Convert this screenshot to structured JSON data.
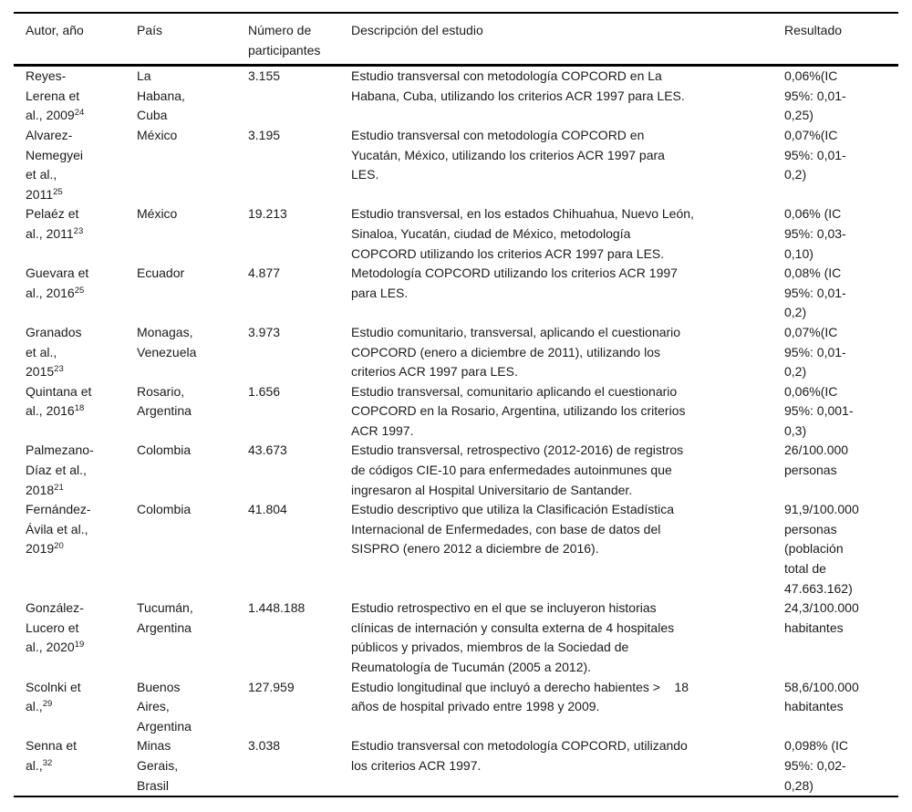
{
  "table": {
    "columns": [
      {
        "label": "Autor, año"
      },
      {
        "label": "País"
      },
      {
        "label": "Número de\nparticipantes"
      },
      {
        "label": "Descripción del estudio"
      },
      {
        "label": "Resultado"
      }
    ],
    "rows": [
      {
        "author": "Reyes-\nLerena et\nal., 2009",
        "ref": "24",
        "country": "La\nHabana,\nCuba",
        "participants": "3.155",
        "description": "Estudio transversal con metodología COPCORD en La\nHabana, Cuba, utilizando los criterios ACR 1997 para LES.",
        "result": "0,06%(IC\n95%: 0,01-\n0,25)"
      },
      {
        "author": "Alvarez-\nNemegyei\net al.,\n2011",
        "ref": "25",
        "country": "México",
        "participants": "3.195",
        "description": "Estudio transversal con metodología COPCORD en\nYucatán, México, utilizando los criterios ACR 1997 para\nLES.",
        "result": "0,07%(IC\n95%: 0,01-\n0,2)"
      },
      {
        "author": "Pelaéz et\nal., 2011",
        "ref": "23",
        "country": "México",
        "participants": "19.213",
        "description": "Estudio transversal, en los estados Chihuahua, Nuevo León,\nSinaloa, Yucatán, ciudad de México, metodología\nCOPCORD utilizando los criterios ACR 1997 para LES.",
        "result": "0,06% (IC\n95%: 0,03-\n0,10)"
      },
      {
        "author": "Guevara et\nal., 2016",
        "ref": "25",
        "country": "Ecuador",
        "participants": "4.877",
        "description": "Metodología COPCORD utilizando los criterios ACR 1997\npara LES.",
        "result": "0,08% (IC\n95%: 0,01-\n0,2)"
      },
      {
        "author": "Granados\net al.,\n2015",
        "ref": "23",
        "country": "Monagas,\nVenezuela",
        "participants": "3.973",
        "description": "Estudio comunitario, transversal, aplicando el cuestionario\nCOPCORD (enero a diciembre de 2011), utilizando los\ncriterios ACR 1997 para LES.",
        "result": "0,07%(IC\n95%: 0,01-\n0,2)"
      },
      {
        "author": "Quintana et\nal., 2016",
        "ref": "18",
        "country": "Rosario,\nArgentina",
        "participants": "1.656",
        "description": "Estudio transversal, comunitario aplicando el cuestionario\nCOPCORD en la Rosario, Argentina, utilizando los criterios\nACR 1997.",
        "result": "0,06%(IC\n95%: 0,001-\n0,3)"
      },
      {
        "author": "Palmezano-\nDíaz et al.,\n2018",
        "ref": "21",
        "country": "Colombia",
        "participants": "43.673",
        "description": "Estudio transversal, retrospectivo (2012-2016) de registros\nde códigos CIE-10 para enfermedades autoinmunes que\ningresaron al Hospital Universitario de Santander.",
        "result": "26/100.000\npersonas"
      },
      {
        "author": "Fernández-\nÁvila et al.,\n2019",
        "ref": "20",
        "country": "Colombia",
        "participants": "41.804",
        "description": "Estudio descriptivo que utiliza la Clasificación Estadística\nInternacional de Enfermedades, con base de datos del\nSISPRO (enero 2012 a diciembre de 2016).",
        "result": "91,9/100.000\npersonas\n(población\ntotal de\n47.663.162)"
      },
      {
        "author": "González-\nLucero et\nal., 2020",
        "ref": "19",
        "country": "Tucumán,\nArgentina",
        "participants": "1.448.188",
        "description": "Estudio retrospectivo en el que se incluyeron historias\nclínicas de internación y consulta externa de 4 hospitales\npúblicos y privados, miembros de la Sociedad de\nReumatología de Tucumán (2005 a 2012).",
        "result": "24,3/100.000\nhabitantes"
      },
      {
        "author": "Scolnki et\nal.,",
        "ref": "29",
        "country": "Buenos\nAires,\nArgentina",
        "participants": "127.959",
        "description": "Estudio longitudinal que incluyó a derecho habientes >    18\naños de hospital privado entre 1998 y 2009.",
        "result": "58,6/100.000\nhabitantes"
      },
      {
        "author": "Senna et\nal.,",
        "ref": "32",
        "country": "Minas\nGerais,\nBrasil",
        "participants": "3.038",
        "description": "Estudio transversal con metodología COPCORD, utilizando\nlos criterios ACR 1997.",
        "result": "0,098% (IC\n95%: 0,02-\n0,28)"
      }
    ]
  }
}
